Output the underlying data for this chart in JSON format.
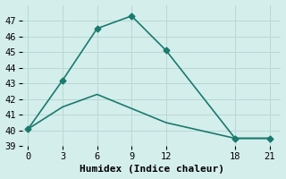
{
  "xlabel": "Humidex (Indice chaleur)",
  "background_color": "#d4eeec",
  "line_color": "#1a7a6e",
  "line1_x": [
    0,
    3,
    6,
    9,
    12,
    18,
    21
  ],
  "line1_y": [
    40.1,
    43.2,
    46.5,
    47.3,
    45.1,
    39.5,
    39.5
  ],
  "line2_x": [
    0,
    3,
    6,
    12,
    18,
    21
  ],
  "line2_y": [
    40.1,
    41.5,
    42.3,
    40.5,
    39.5,
    39.5
  ],
  "xlim": [
    -0.5,
    22
  ],
  "ylim": [
    39,
    48
  ],
  "yticks": [
    39,
    40,
    41,
    42,
    43,
    44,
    45,
    46,
    47
  ],
  "xticks": [
    0,
    3,
    6,
    9,
    12,
    18,
    21
  ],
  "grid_color": "#b8d8d4",
  "marker": "D",
  "markersize": 3.5,
  "linewidth": 1.2,
  "font_family": "monospace",
  "xlabel_fontsize": 8,
  "tick_fontsize": 7.5
}
